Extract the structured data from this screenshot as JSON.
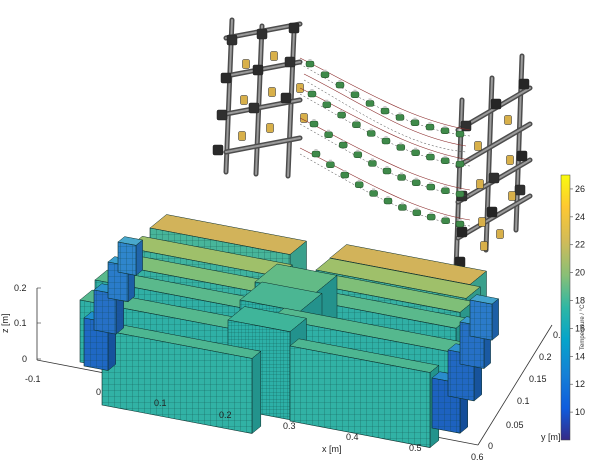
{
  "chart_data": {
    "type": "3d-voxel-temperature-map",
    "z_axis": {
      "label": "z [m]",
      "ticks": [
        "0.2",
        "0.1",
        "0"
      ]
    },
    "x_axis": {
      "label": "x [m]",
      "ticks": [
        "-0.1",
        "0",
        "0.1",
        "0.2",
        "0.3",
        "0.4",
        "0.5",
        "0.6"
      ]
    },
    "y_axis": {
      "label": "y [m]",
      "ticks": [
        "0",
        "0.05",
        "0.1",
        "0.15",
        "0.2",
        "0.25"
      ]
    },
    "colorbar": {
      "label": "Temperature / °C",
      "range": [
        8,
        27
      ],
      "ticks": [
        "26",
        "24",
        "22",
        "20",
        "18",
        "16",
        "14",
        "12",
        "10"
      ],
      "colormap": "parula"
    }
  },
  "colors": {
    "hot": "#e6b24a",
    "mid": "#2fb3a0",
    "cool": "#1a5fb4",
    "frame": "#5a5a5a",
    "connector": "#2a2a2a",
    "cell_yellow": "#d8b04a",
    "cell_green": "#3f8a4a"
  }
}
